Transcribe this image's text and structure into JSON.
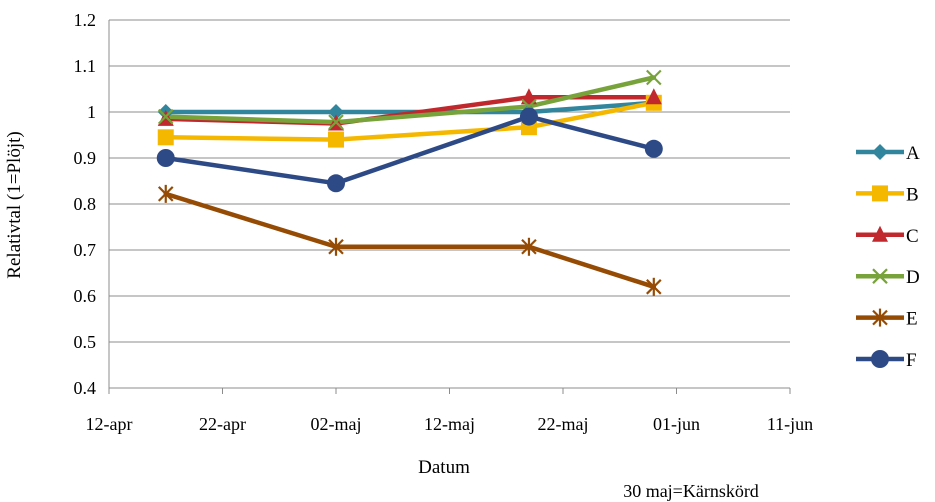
{
  "chart_data": {
    "type": "line",
    "xlabel": "Datum",
    "ylabel": "Relativtal (1=Plöjt)",
    "ylim": [
      0.4,
      1.2
    ],
    "yticks": [
      "0.4",
      "0.5",
      "0.6",
      "0.7",
      "0.8",
      "0.9",
      "1",
      "1.1",
      "1.2"
    ],
    "xlim": [
      "2012-04-12",
      "2012-06-11"
    ],
    "xticks": [
      {
        "date": "2012-04-12",
        "label": "12-apr"
      },
      {
        "date": "2012-04-22",
        "label": "22-apr"
      },
      {
        "date": "2012-05-02",
        "label": "02-maj"
      },
      {
        "date": "2012-05-12",
        "label": "12-maj"
      },
      {
        "date": "2012-05-22",
        "label": "22-maj"
      },
      {
        "date": "2012-06-01",
        "label": "01-jun"
      },
      {
        "date": "2012-06-11",
        "label": "11-jun"
      }
    ],
    "grid": "horizontal",
    "legend_position": "right",
    "annotation": "30 maj=Kärnskörd",
    "series": [
      {
        "name": "A",
        "color": "#31859c",
        "marker": "diamond",
        "points": [
          [
            "2012-04-17",
            1.0
          ],
          [
            "2012-05-02",
            1.0
          ],
          [
            "2012-05-19",
            1.0
          ],
          [
            "2012-05-30",
            1.02
          ]
        ]
      },
      {
        "name": "B",
        "color": "#f5b800",
        "marker": "square",
        "points": [
          [
            "2012-04-17",
            0.945
          ],
          [
            "2012-05-02",
            0.94
          ],
          [
            "2012-05-19",
            0.967
          ],
          [
            "2012-05-30",
            1.02
          ]
        ]
      },
      {
        "name": "C",
        "color": "#c0282d",
        "marker": "triangle",
        "points": [
          [
            "2012-04-17",
            0.985
          ],
          [
            "2012-05-02",
            0.975
          ],
          [
            "2012-05-19",
            1.032
          ],
          [
            "2012-05-30",
            1.032
          ]
        ]
      },
      {
        "name": "D",
        "color": "#77a33a",
        "marker": "x",
        "points": [
          [
            "2012-04-17",
            0.99
          ],
          [
            "2012-05-02",
            0.978
          ],
          [
            "2012-05-19",
            1.012
          ],
          [
            "2012-05-30",
            1.075
          ]
        ]
      },
      {
        "name": "E",
        "color": "#964b04",
        "marker": "star",
        "points": [
          [
            "2012-04-17",
            0.822
          ],
          [
            "2012-05-02",
            0.707
          ],
          [
            "2012-05-19",
            0.707
          ],
          [
            "2012-05-30",
            0.62
          ]
        ]
      },
      {
        "name": "F",
        "color": "#2e4a86",
        "marker": "circle",
        "points": [
          [
            "2012-04-17",
            0.9
          ],
          [
            "2012-05-02",
            0.845
          ],
          [
            "2012-05-19",
            0.99
          ],
          [
            "2012-05-30",
            0.92
          ]
        ]
      }
    ]
  }
}
